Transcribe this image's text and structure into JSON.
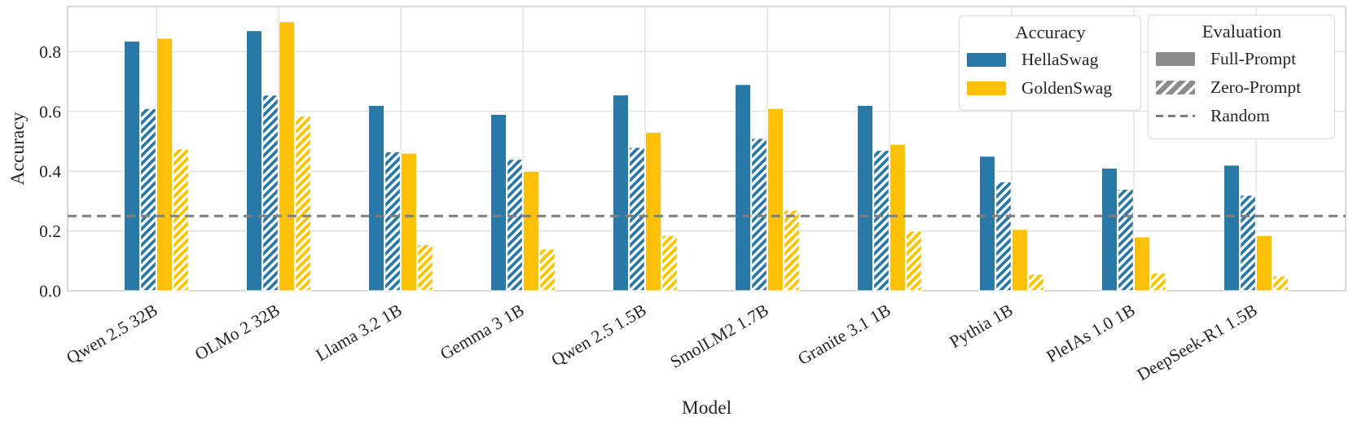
{
  "figure": {
    "background": "#ffffff"
  },
  "chart_data": {
    "type": "bar",
    "title": "",
    "xlabel": "Model",
    "ylabel": "Accuracy",
    "ylim": [
      0,
      0.951
    ],
    "yticks": [
      0.0,
      0.2,
      0.4,
      0.6,
      0.8
    ],
    "ytick_labels": [
      "0.0",
      "0.2",
      "0.4",
      "0.6",
      "0.8"
    ],
    "grid": true,
    "legend_position": "upper right",
    "categories": [
      "Qwen 2.5 32B",
      "OLMo 2 32B",
      "Llama 3.2 1B",
      "Gemma 3 1B",
      "Qwen 2.5 1.5B",
      "SmolLM2 1.7B",
      "Granite 3.1 1B",
      "Pythia 1B",
      "PleIAs 1.0 1B",
      "DeepSeek-R1 1.5B"
    ],
    "series": [
      {
        "name": "HellaSwag Full-Prompt",
        "dataset": "HellaSwag",
        "evaluation": "Full-Prompt",
        "color": "#2878A8",
        "hatch": false,
        "values": [
          0.835,
          0.87,
          0.62,
          0.59,
          0.655,
          0.69,
          0.62,
          0.45,
          0.41,
          0.42
        ]
      },
      {
        "name": "HellaSwag Zero-Prompt",
        "dataset": "HellaSwag",
        "evaluation": "Zero-Prompt",
        "color": "#2878A8",
        "hatch": true,
        "values": [
          0.61,
          0.655,
          0.465,
          0.44,
          0.48,
          0.51,
          0.47,
          0.365,
          0.34,
          0.32
        ]
      },
      {
        "name": "GoldenSwag Full-Prompt",
        "dataset": "GoldenSwag",
        "evaluation": "Full-Prompt",
        "color": "#FFC107",
        "hatch": false,
        "values": [
          0.845,
          0.9,
          0.46,
          0.4,
          0.53,
          0.61,
          0.49,
          0.205,
          0.18,
          0.185
        ]
      },
      {
        "name": "GoldenSwag Zero-Prompt",
        "dataset": "GoldenSwag",
        "evaluation": "Zero-Prompt",
        "color": "#FFC107",
        "hatch": true,
        "values": [
          0.475,
          0.585,
          0.155,
          0.14,
          0.185,
          0.27,
          0.2,
          0.055,
          0.06,
          0.05
        ]
      }
    ],
    "reference_line": {
      "label": "Random",
      "value": 0.25,
      "color": "#7F7F7F",
      "style": "dashed"
    }
  },
  "legends": {
    "accuracy": {
      "title": "Accuracy",
      "items": [
        {
          "label": "HellaSwag",
          "color": "#2878A8"
        },
        {
          "label": "GoldenSwag",
          "color": "#FFC107"
        }
      ]
    },
    "evaluation": {
      "title": "Evaluation",
      "swatch_color": "#8C8C8C",
      "line_color": "#7F7F7F",
      "items": [
        {
          "label": "Full-Prompt",
          "style": "solid"
        },
        {
          "label": "Zero-Prompt",
          "style": "hatched"
        },
        {
          "label": "Random",
          "style": "dashed"
        }
      ]
    }
  },
  "colors": {
    "grid": "#DCDCDC",
    "spine": "#C9C9C9",
    "text": "#262626",
    "background": "#FFFFFF"
  }
}
